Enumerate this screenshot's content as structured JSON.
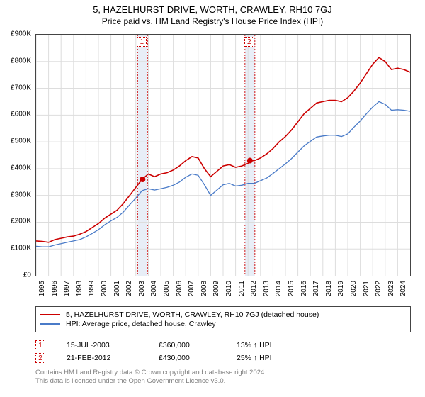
{
  "title": {
    "main": "5, HAZELHURST DRIVE, WORTH, CRAWLEY, RH10 7GJ",
    "sub": "Price paid vs. HM Land Registry's House Price Index (HPI)",
    "fontsize_main": 13,
    "fontsize_sub": 12
  },
  "chart": {
    "type": "line",
    "background_color": "#ffffff",
    "border_color": "#444444",
    "grid_color": "#dddddd",
    "y": {
      "min": 0,
      "max": 900000,
      "tick_step": 100000,
      "labels": [
        "£0",
        "£100K",
        "£200K",
        "£300K",
        "£400K",
        "£500K",
        "£600K",
        "£700K",
        "£800K",
        "£900K"
      ]
    },
    "x": {
      "min": 1995,
      "max": 2025,
      "labels": [
        "1995",
        "1996",
        "1997",
        "1998",
        "1999",
        "2000",
        "2001",
        "2002",
        "2003",
        "2004",
        "2005",
        "2006",
        "2007",
        "2008",
        "2009",
        "2010",
        "2011",
        "2012",
        "2013",
        "2014",
        "2015",
        "2016",
        "2017",
        "2018",
        "2019",
        "2020",
        "2021",
        "2022",
        "2023",
        "2024"
      ]
    },
    "series": [
      {
        "name": "5, HAZELHURST DRIVE, WORTH, CRAWLEY, RH10 7GJ (detached house)",
        "color": "#cc0000",
        "line_width": 1.6,
        "data": [
          [
            1995.0,
            130000
          ],
          [
            1995.5,
            128000
          ],
          [
            1996.0,
            125000
          ],
          [
            1996.5,
            135000
          ],
          [
            1997.0,
            140000
          ],
          [
            1997.5,
            145000
          ],
          [
            1998.0,
            148000
          ],
          [
            1998.5,
            155000
          ],
          [
            1999.0,
            165000
          ],
          [
            1999.5,
            180000
          ],
          [
            2000.0,
            195000
          ],
          [
            2000.5,
            215000
          ],
          [
            2001.0,
            230000
          ],
          [
            2001.5,
            245000
          ],
          [
            2002.0,
            270000
          ],
          [
            2002.5,
            300000
          ],
          [
            2003.0,
            330000
          ],
          [
            2003.5,
            360000
          ],
          [
            2004.0,
            380000
          ],
          [
            2004.5,
            370000
          ],
          [
            2005.0,
            380000
          ],
          [
            2005.5,
            385000
          ],
          [
            2006.0,
            395000
          ],
          [
            2006.5,
            410000
          ],
          [
            2007.0,
            430000
          ],
          [
            2007.5,
            445000
          ],
          [
            2008.0,
            440000
          ],
          [
            2008.5,
            400000
          ],
          [
            2009.0,
            370000
          ],
          [
            2009.5,
            390000
          ],
          [
            2010.0,
            410000
          ],
          [
            2010.5,
            415000
          ],
          [
            2011.0,
            405000
          ],
          [
            2011.5,
            410000
          ],
          [
            2012.0,
            420000
          ],
          [
            2012.15,
            430000
          ],
          [
            2012.5,
            430000
          ],
          [
            2013.0,
            440000
          ],
          [
            2013.5,
            455000
          ],
          [
            2014.0,
            475000
          ],
          [
            2014.5,
            500000
          ],
          [
            2015.0,
            520000
          ],
          [
            2015.5,
            545000
          ],
          [
            2016.0,
            575000
          ],
          [
            2016.5,
            605000
          ],
          [
            2017.0,
            625000
          ],
          [
            2017.5,
            645000
          ],
          [
            2018.0,
            650000
          ],
          [
            2018.5,
            655000
          ],
          [
            2019.0,
            655000
          ],
          [
            2019.5,
            650000
          ],
          [
            2020.0,
            665000
          ],
          [
            2020.5,
            690000
          ],
          [
            2021.0,
            720000
          ],
          [
            2021.5,
            755000
          ],
          [
            2022.0,
            790000
          ],
          [
            2022.5,
            815000
          ],
          [
            2023.0,
            800000
          ],
          [
            2023.5,
            770000
          ],
          [
            2024.0,
            775000
          ],
          [
            2024.5,
            770000
          ],
          [
            2025.0,
            760000
          ]
        ]
      },
      {
        "name": "HPI: Average price, detached house, Crawley",
        "color": "#4a7bc8",
        "line_width": 1.3,
        "data": [
          [
            1995.0,
            110000
          ],
          [
            1995.5,
            108000
          ],
          [
            1996.0,
            108000
          ],
          [
            1996.5,
            115000
          ],
          [
            1997.0,
            120000
          ],
          [
            1997.5,
            125000
          ],
          [
            1998.0,
            130000
          ],
          [
            1998.5,
            135000
          ],
          [
            1999.0,
            145000
          ],
          [
            1999.5,
            158000
          ],
          [
            2000.0,
            172000
          ],
          [
            2000.5,
            190000
          ],
          [
            2001.0,
            205000
          ],
          [
            2001.5,
            218000
          ],
          [
            2002.0,
            238000
          ],
          [
            2002.5,
            265000
          ],
          [
            2003.0,
            290000
          ],
          [
            2003.5,
            318000
          ],
          [
            2004.0,
            325000
          ],
          [
            2004.5,
            320000
          ],
          [
            2005.0,
            325000
          ],
          [
            2005.5,
            330000
          ],
          [
            2006.0,
            338000
          ],
          [
            2006.5,
            350000
          ],
          [
            2007.0,
            368000
          ],
          [
            2007.5,
            380000
          ],
          [
            2008.0,
            375000
          ],
          [
            2008.5,
            340000
          ],
          [
            2009.0,
            300000
          ],
          [
            2009.5,
            320000
          ],
          [
            2010.0,
            340000
          ],
          [
            2010.5,
            345000
          ],
          [
            2011.0,
            335000
          ],
          [
            2011.5,
            338000
          ],
          [
            2012.0,
            345000
          ],
          [
            2012.5,
            345000
          ],
          [
            2013.0,
            355000
          ],
          [
            2013.5,
            365000
          ],
          [
            2014.0,
            382000
          ],
          [
            2014.5,
            400000
          ],
          [
            2015.0,
            418000
          ],
          [
            2015.5,
            438000
          ],
          [
            2016.0,
            462000
          ],
          [
            2016.5,
            485000
          ],
          [
            2017.0,
            502000
          ],
          [
            2017.5,
            518000
          ],
          [
            2018.0,
            522000
          ],
          [
            2018.5,
            525000
          ],
          [
            2019.0,
            525000
          ],
          [
            2019.5,
            520000
          ],
          [
            2020.0,
            530000
          ],
          [
            2020.5,
            555000
          ],
          [
            2021.0,
            578000
          ],
          [
            2021.5,
            605000
          ],
          [
            2022.0,
            630000
          ],
          [
            2022.5,
            650000
          ],
          [
            2023.0,
            640000
          ],
          [
            2023.5,
            618000
          ],
          [
            2024.0,
            620000
          ],
          [
            2024.5,
            618000
          ],
          [
            2025.0,
            614000
          ]
        ]
      }
    ],
    "markers": [
      {
        "label": "1",
        "x": 2003.54,
        "y": 360000,
        "color": "#cc0000",
        "band_color": "#e8eef7"
      },
      {
        "label": "2",
        "x": 2012.15,
        "y": 430000,
        "color": "#cc0000",
        "band_color": "#e8eef7"
      }
    ]
  },
  "legend": {
    "items": [
      {
        "color": "#cc0000",
        "label": "5, HAZELHURST DRIVE, WORTH, CRAWLEY, RH10 7GJ (detached house)"
      },
      {
        "color": "#4a7bc8",
        "label": "HPI: Average price, detached house, Crawley"
      }
    ]
  },
  "sales": [
    {
      "marker": "1",
      "date": "15-JUL-2003",
      "price": "£360,000",
      "pct": "13% ↑ HPI"
    },
    {
      "marker": "2",
      "date": "21-FEB-2012",
      "price": "£430,000",
      "pct": "25% ↑ HPI"
    }
  ],
  "footer": {
    "line1": "Contains HM Land Registry data © Crown copyright and database right 2024.",
    "line2": "This data is licensed under the Open Government Licence v3.0."
  }
}
